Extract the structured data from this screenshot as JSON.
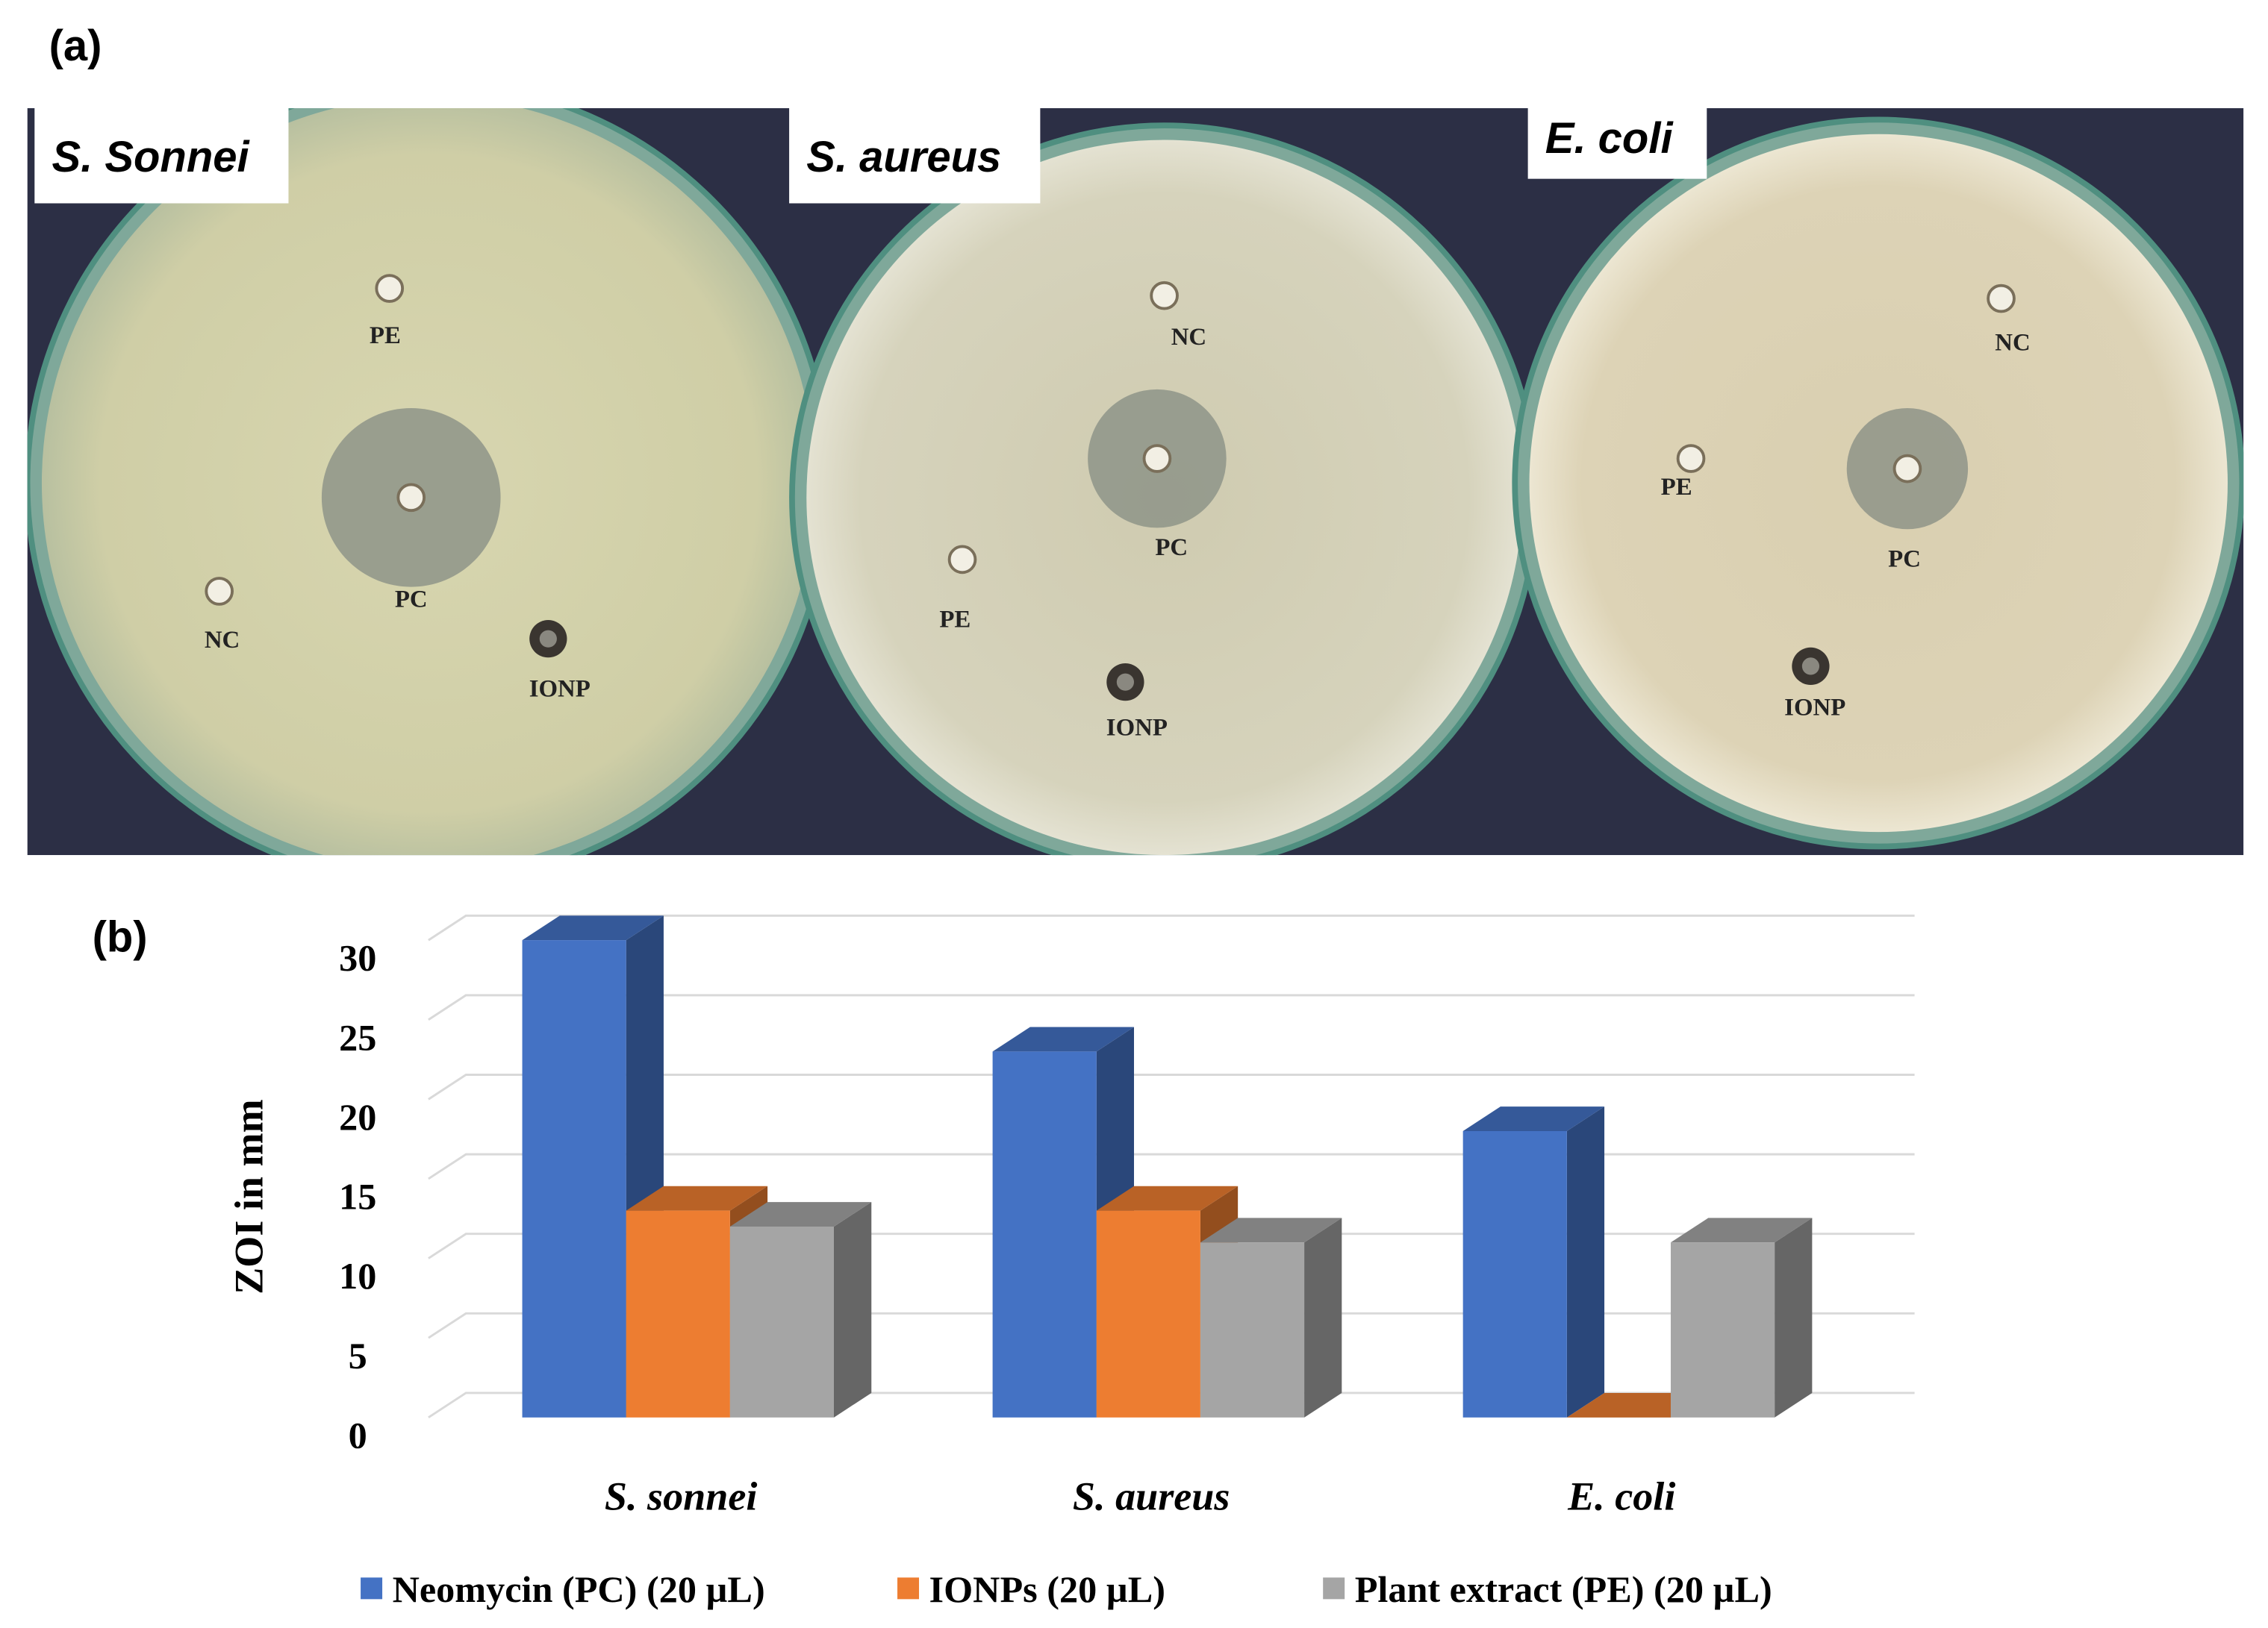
{
  "panel_a": {
    "label": "(a)",
    "plates": [
      {
        "name": "S. Sonnei",
        "wells": [
          "PE",
          "PC",
          "NC",
          "IONP"
        ]
      },
      {
        "name": "S. aureus",
        "wells": [
          "NC",
          "PC",
          "PE",
          "IONP"
        ]
      },
      {
        "name": "E. coli",
        "wells": [
          "NC",
          "PE",
          "PC",
          "IONP"
        ]
      }
    ]
  },
  "chart_data": {
    "type": "bar3d",
    "label": "(b)",
    "y_label": "ZOI in mm",
    "categories": [
      "S. sonnei",
      "S. aureus",
      "E. coli"
    ],
    "series": [
      {
        "name": "Neomycin (PC) (20 µL)",
        "color": "#4472c4",
        "values": [
          30,
          23,
          18
        ]
      },
      {
        "name": "IONPs (20 µL)",
        "color": "#ed7d31",
        "values": [
          13,
          13,
          0
        ]
      },
      {
        "name": "Plant extract (PE) (20 µL)",
        "color": "#a5a5a5",
        "values": [
          12,
          11,
          11
        ]
      }
    ],
    "ylim": [
      0,
      30
    ],
    "yticks": [
      0,
      5,
      10,
      15,
      20,
      25,
      30
    ],
    "grid": true,
    "legend": "bottom"
  }
}
